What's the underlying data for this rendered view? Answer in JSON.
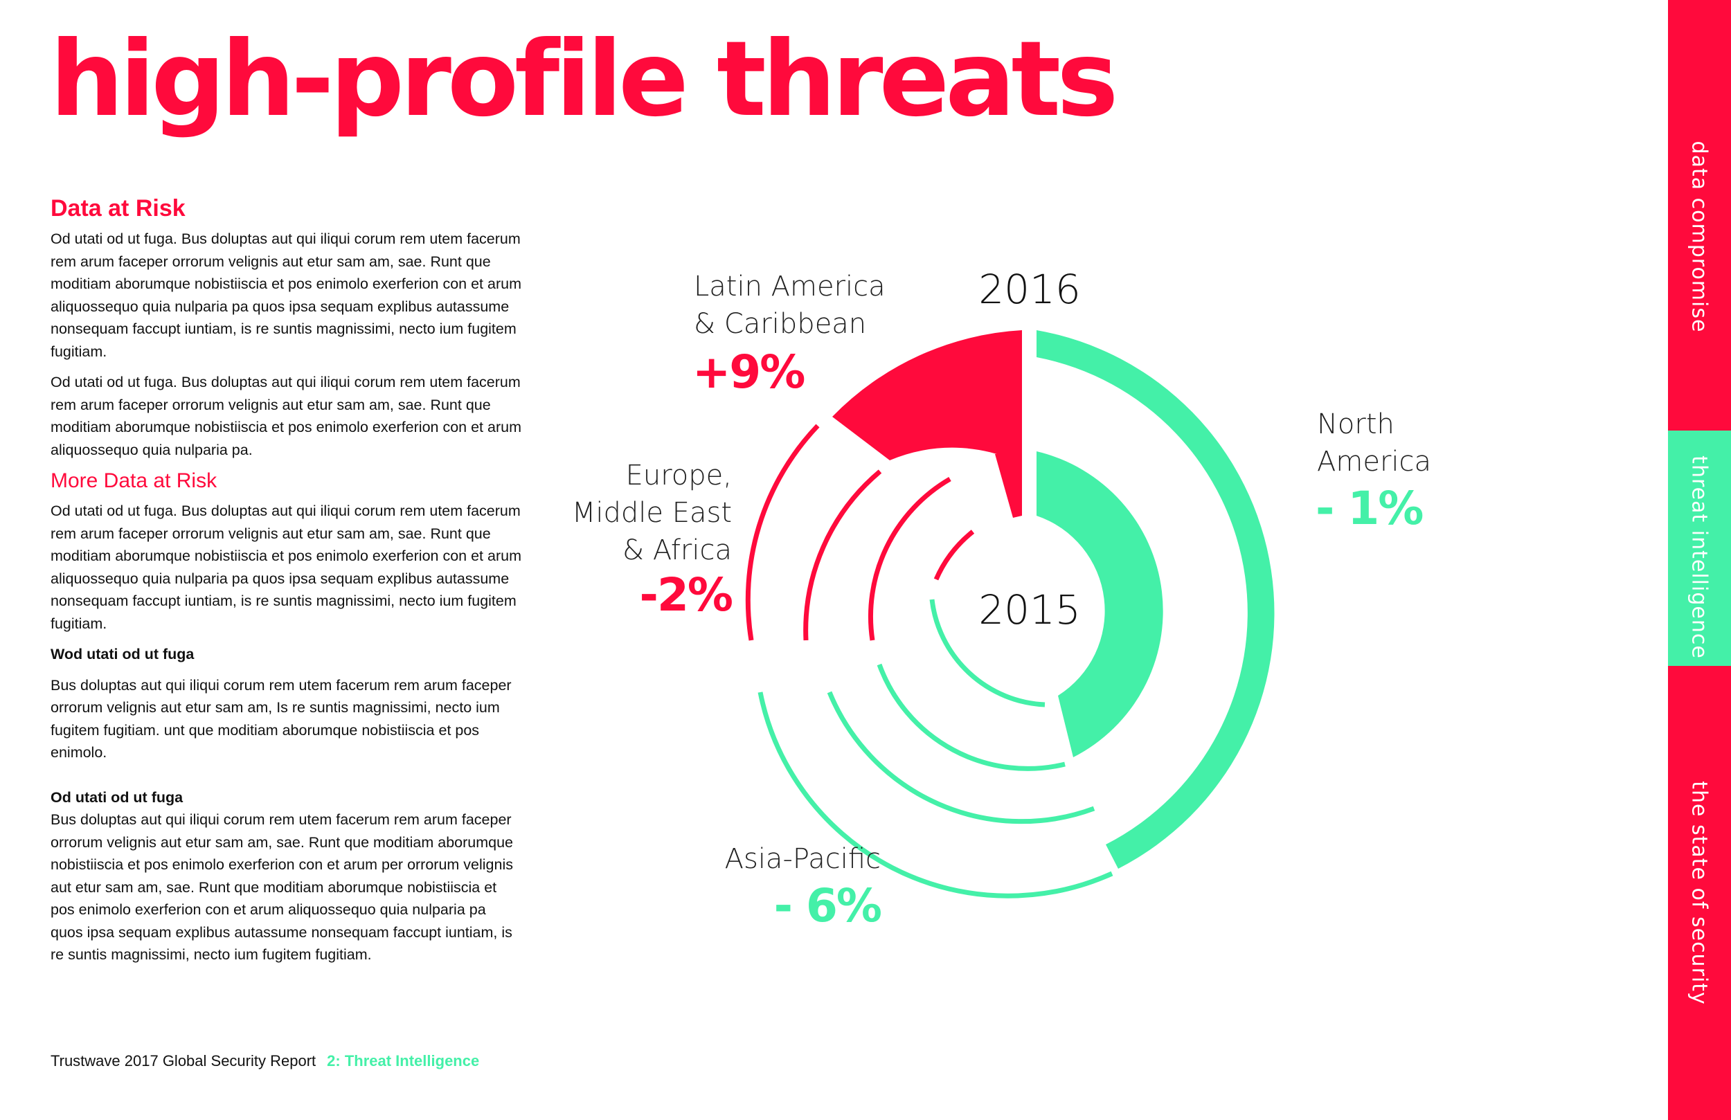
{
  "title": "high-profile threats",
  "article": {
    "heading1": "Data at Risk",
    "p1": "Od utati od ut fuga. Bus doluptas aut qui iliqui corum rem utem facerum rem arum faceper orrorum velignis aut etur sam am, sae. Runt que moditiam aborumque nobistiiscia et pos enimolo exerferion con et arum aliquossequo quia nulparia pa quos ipsa sequam explibus autassume nonsequam faccupt iuntiam, is re suntis magnissimi, necto ium fugitem fugitiam.",
    "p2": "Od utati od ut fuga. Bus doluptas aut qui iliqui corum rem utem facerum rem arum faceper orrorum velignis aut etur sam am, sae. Runt que moditiam aborumque nobistiiscia et pos enimolo exerferion con et arum aliquossequo quia nulparia pa.",
    "heading2": "More Data at Risk",
    "p3": "Od utati od ut fuga. Bus doluptas aut qui iliqui corum rem utem facerum rem arum faceper orrorum velignis aut etur sam am, sae. Runt que moditiam aborumque nobistiiscia et pos enimolo exerferion con et arum aliquossequo quia nulparia pa quos ipsa sequam explibus autassume nonsequam faccupt iuntiam, is re suntis magnissimi, necto ium fugitem fugitiam.",
    "subhead1": "Wod utati od ut fuga",
    "p4": "Bus doluptas aut qui iliqui corum rem utem facerum rem arum faceper orrorum velignis aut etur sam am, Is re suntis magnissimi, necto ium fugitem fugitiam. unt que moditiam aborumque nobistiiscia et pos enimolo.",
    "subhead2": "Od utati od ut fuga",
    "p5": "Bus doluptas aut qui iliqui corum rem utem facerum rem arum faceper orrorum velignis aut etur sam am, sae. Runt que moditiam aborumque nobistiiscia et pos enimolo exerferion con et arum per orrorum velignis aut etur sam am, sae. Runt que moditiam aborumque nobistiiscia et pos enimolo exerferion con et arum aliquossequo quia nulparia pa quos ipsa sequam explibus autassume nonsequam faccupt iuntiam, is re suntis magnissimi, necto ium fugitem fugitiam."
  },
  "footer": {
    "report": "Trustwave 2017 Global Security Report",
    "section": "2: Threat Intelligence"
  },
  "sidebar": {
    "items": [
      "data compromise",
      "threat intelligence",
      "the state of security"
    ],
    "active_index": 1
  },
  "colors": {
    "red": "#ff0a3c",
    "green": "#44f0a8"
  },
  "chart_data": {
    "type": "donut",
    "year_outer": "2016",
    "year_inner": "2015",
    "regions": [
      {
        "name_lines": [
          "North",
          "America"
        ],
        "change": "- 1%"
      },
      {
        "name_lines": [
          "Asia-Pacific"
        ],
        "change": "- 6%"
      },
      {
        "name_lines": [
          "Europe,",
          "Middle East",
          "& Africa"
        ],
        "change": "-2%"
      },
      {
        "name_lines": [
          "Latin America",
          "& Caribbean"
        ],
        "change": "+9%"
      }
    ]
  }
}
